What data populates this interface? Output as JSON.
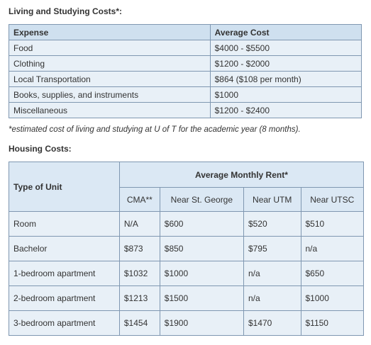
{
  "living": {
    "heading": "Living and Studying Costs*:",
    "columns": [
      "Expense",
      "Average Cost"
    ],
    "rows": [
      {
        "expense": "Food",
        "cost": "$4000 - $5500"
      },
      {
        "expense": "Clothing",
        "cost": "$1200 - $2000"
      },
      {
        "expense": "Local Transportation",
        "cost": "$864 ($108 per month)"
      },
      {
        "expense": "Books, supplies, and instruments",
        "cost": "$1000"
      },
      {
        "expense": "Miscellaneous",
        "cost": "$1200 - $2400"
      }
    ],
    "note": "*estimated cost of living and studying at U of T for the academic year (8 months)."
  },
  "housing": {
    "heading": "Housing Costs:",
    "type_header": "Type of Unit",
    "group_header": "Average Monthly Rent*",
    "sub_headers": [
      "CMA**",
      "Near St. George",
      "Near UTM",
      "Near UTSC"
    ],
    "rows": [
      {
        "type": "Room",
        "cma": "N/A",
        "st_george": "$600",
        "utm": "$520",
        "utsc": "$510"
      },
      {
        "type": "Bachelor",
        "cma": "$873",
        "st_george": "$850",
        "utm": "$795",
        "utsc": "n/a"
      },
      {
        "type": "1-bedroom apartment",
        "cma": "$1032",
        "st_george": "$1000",
        "utm": "n/a",
        "utsc": "$650"
      },
      {
        "type": "2-bedroom apartment",
        "cma": "$1213",
        "st_george": "$1500",
        "utm": "n/a",
        "utsc": "$1000"
      },
      {
        "type": "3-bedroom apartment",
        "cma": "$1454",
        "st_george": "$1900",
        "utm": "$1470",
        "utsc": "$1150"
      }
    ]
  }
}
